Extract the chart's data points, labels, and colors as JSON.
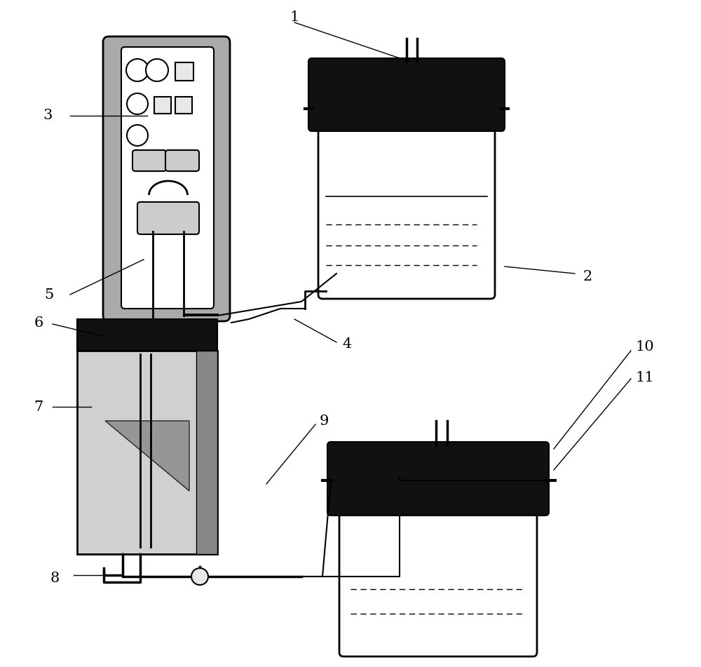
{
  "bg_color": "#ffffff",
  "fig_width": 10.0,
  "fig_height": 9.51,
  "lc": "#000000",
  "dc": "#111111",
  "gray_outer": "#aaaaaa",
  "gray_inner": "#e8e8e8",
  "gray_btn": "#cccccc",
  "gray_cell": "#d0d0d0",
  "gray_cell_dark": "#888888"
}
